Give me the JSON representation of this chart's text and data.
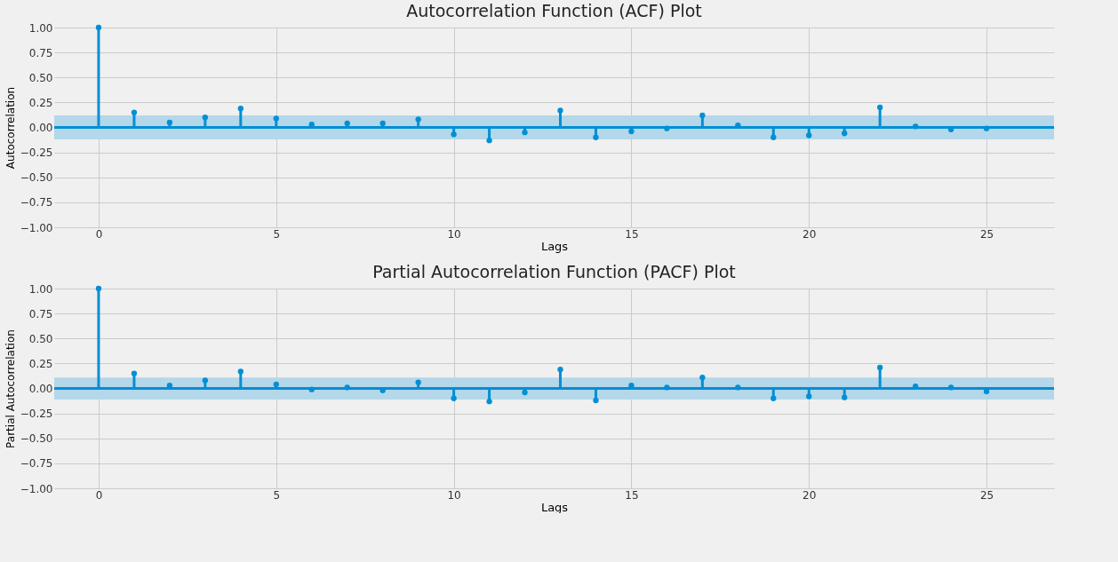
{
  "chart_data": [
    {
      "type": "lollipop",
      "title": "Autocorrelation Function (ACF) Plot",
      "xlabel": "Lags",
      "ylabel": "Autocorrelation",
      "x": [
        0,
        1,
        2,
        3,
        4,
        5,
        6,
        7,
        8,
        9,
        10,
        11,
        12,
        13,
        14,
        15,
        16,
        17,
        18,
        19,
        20,
        21,
        22,
        23,
        24,
        25
      ],
      "series": [
        {
          "color": "#008fd5",
          "values": [
            1,
            0.15,
            0.05,
            0.1,
            0.19,
            0.09,
            0.03,
            0.04,
            0.04,
            0.08,
            -0.07,
            -0.13,
            -0.05,
            0.17,
            -0.1,
            -0.04,
            -0.01,
            0.12,
            0.02,
            -0.1,
            -0.08,
            -0.06,
            0.2,
            0.01,
            -0.02,
            -0.01
          ]
        }
      ],
      "bands": [
        {
          "axis": "y",
          "from": -0.12,
          "to": 0.12,
          "color": "#b4d7ea"
        }
      ],
      "marker": "circle",
      "grid": true,
      "ref_lines": [
        {
          "axis": "y",
          "value": 0,
          "color": "#008fd5"
        }
      ],
      "xlim": [
        -1.25,
        26.9
      ],
      "xticks": [
        0,
        5,
        10,
        15,
        20,
        25
      ],
      "ylim": [
        -1,
        1
      ],
      "yticks": [
        {
          "value": -1,
          "label": "−1.00"
        },
        {
          "value": -0.75,
          "label": "−0.75"
        },
        {
          "value": -0.5,
          "label": "−0.50"
        },
        {
          "value": -0.25,
          "label": "−0.25"
        },
        {
          "value": 0,
          "label": "0.00"
        },
        {
          "value": 0.25,
          "label": "0.25"
        },
        {
          "value": 0.5,
          "label": "0.50"
        },
        {
          "value": 0.75,
          "label": "0.75"
        },
        {
          "value": 1,
          "label": "1.00"
        }
      ]
    },
    {
      "type": "lollipop",
      "title": "Partial Autocorrelation Function (PACF) Plot",
      "xlabel": "Lags",
      "ylabel": "Partial Autocorrelation",
      "x": [
        0,
        1,
        2,
        3,
        4,
        5,
        6,
        7,
        8,
        9,
        10,
        11,
        12,
        13,
        14,
        15,
        16,
        17,
        18,
        19,
        20,
        21,
        22,
        23,
        24,
        25
      ],
      "series": [
        {
          "color": "#008fd5",
          "values": [
            1,
            0.15,
            0.03,
            0.08,
            0.17,
            0.04,
            -0.01,
            0.01,
            -0.02,
            0.06,
            -0.1,
            -0.13,
            -0.04,
            0.19,
            -0.12,
            0.03,
            0.01,
            0.11,
            0.01,
            -0.1,
            -0.08,
            -0.09,
            0.21,
            0.02,
            0.01,
            -0.03
          ]
        }
      ],
      "bands": [
        {
          "axis": "y",
          "from": -0.11,
          "to": 0.11,
          "color": "#b4d7ea"
        }
      ],
      "marker": "circle",
      "grid": true,
      "ref_lines": [
        {
          "axis": "y",
          "value": 0,
          "color": "#008fd5"
        }
      ],
      "xlim": [
        -1.25,
        26.9
      ],
      "xticks": [
        0,
        5,
        10,
        15,
        20,
        25
      ],
      "ylim": [
        -1,
        1
      ],
      "yticks": [
        {
          "value": -1,
          "label": "−1.00"
        },
        {
          "value": -0.75,
          "label": "−0.75"
        },
        {
          "value": -0.5,
          "label": "−0.50"
        },
        {
          "value": -0.25,
          "label": "−0.25"
        },
        {
          "value": 0,
          "label": "0.00"
        },
        {
          "value": 0.25,
          "label": "0.25"
        },
        {
          "value": 0.5,
          "label": "0.50"
        },
        {
          "value": 0.75,
          "label": "0.75"
        },
        {
          "value": 1,
          "label": "1.00"
        }
      ]
    }
  ]
}
